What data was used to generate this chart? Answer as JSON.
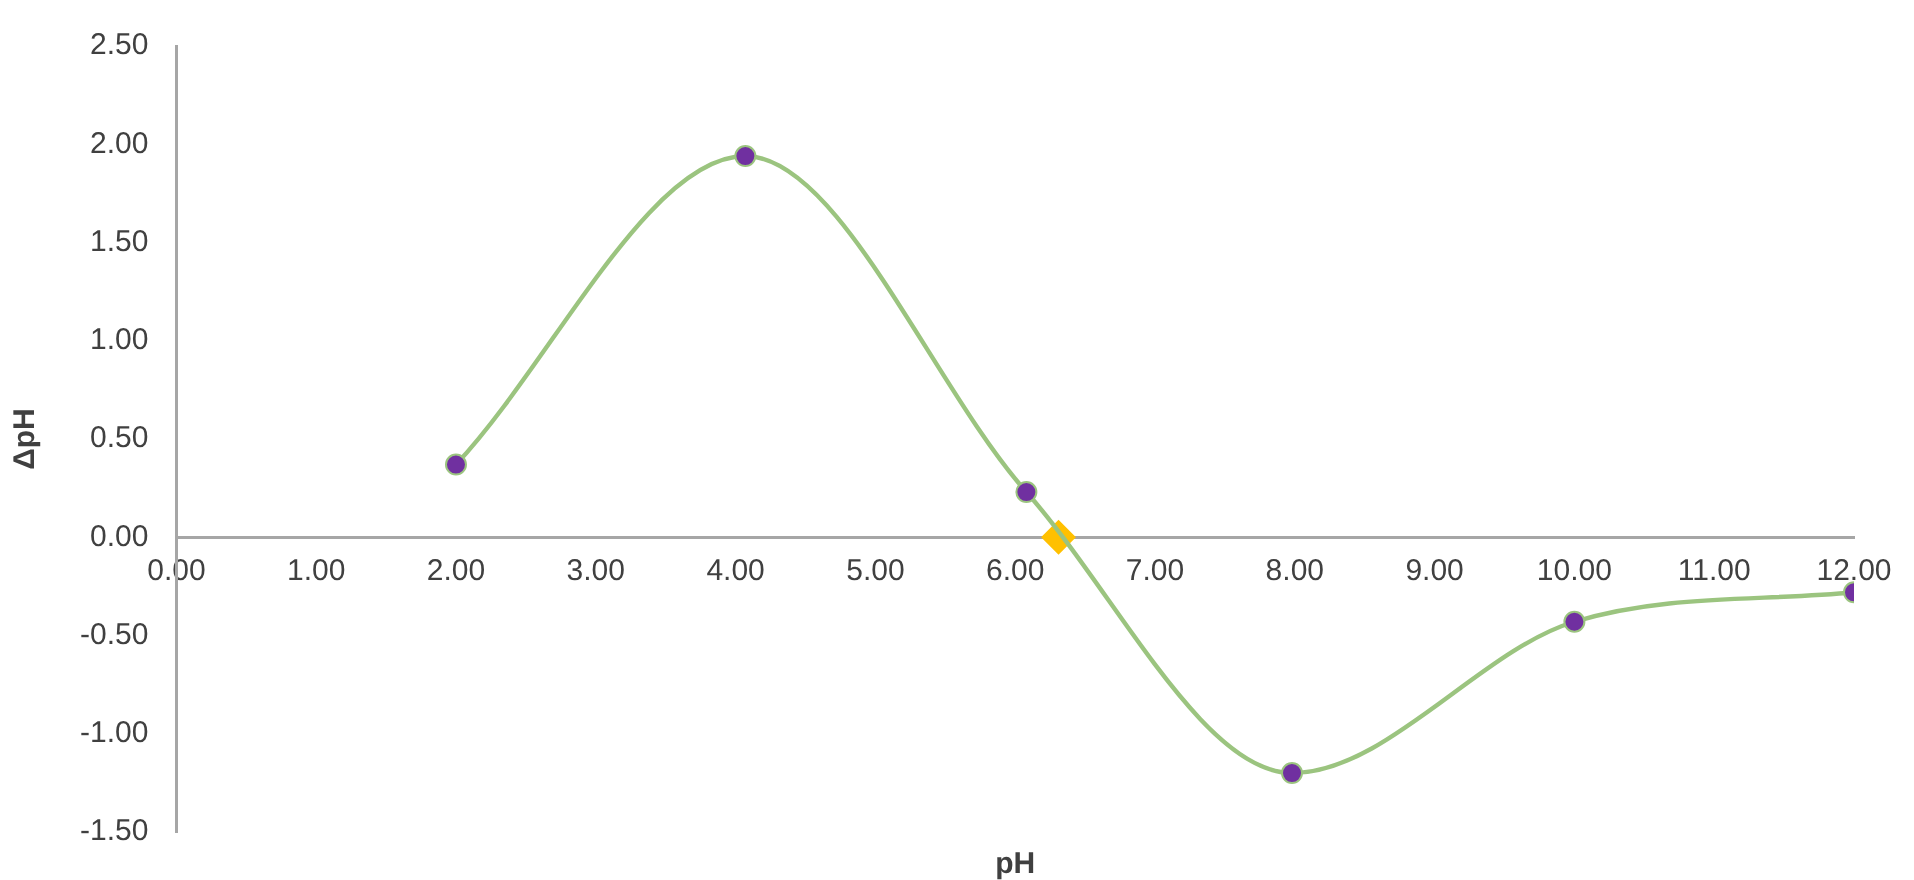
{
  "chart_data": {
    "type": "line",
    "xlabel": "pH",
    "ylabel": "ΔpH",
    "xlim": [
      0,
      12
    ],
    "ylim": [
      -1.5,
      2.5
    ],
    "xticks": [
      {
        "value": 0,
        "label": "0.00"
      },
      {
        "value": 1,
        "label": "1.00"
      },
      {
        "value": 2,
        "label": "2.00"
      },
      {
        "value": 3,
        "label": "3.00"
      },
      {
        "value": 4,
        "label": "4.00"
      },
      {
        "value": 5,
        "label": "5.00"
      },
      {
        "value": 6,
        "label": "6.00"
      },
      {
        "value": 7,
        "label": "7.00"
      },
      {
        "value": 8,
        "label": "8.00"
      },
      {
        "value": 9,
        "label": "9.00"
      },
      {
        "value": 10,
        "label": "10.00"
      },
      {
        "value": 11,
        "label": "11.00"
      },
      {
        "value": 12,
        "label": "12.00"
      }
    ],
    "yticks": [
      {
        "value": -1.5,
        "label": "-1.50"
      },
      {
        "value": -1,
        "label": "-1.00"
      },
      {
        "value": -0.5,
        "label": "-0.50"
      },
      {
        "value": 0,
        "label": "0.00"
      },
      {
        "value": 0.5,
        "label": "0.50"
      },
      {
        "value": 1,
        "label": "1.00"
      },
      {
        "value": 1.5,
        "label": "1.50"
      },
      {
        "value": 2,
        "label": "2.00"
      },
      {
        "value": 2.5,
        "label": "2.50"
      }
    ],
    "grid": false,
    "legend": false,
    "series": [
      {
        "color": "#9bc47f",
        "colors": [
          "#7030a0",
          "#7030a0",
          "#7030a0",
          "#7030a0",
          "#7030a0",
          "#7030a0"
        ],
        "marker": "circle",
        "x": [
          2.0,
          4.07,
          6.08,
          7.98,
          10.0,
          12.0
        ],
        "values": [
          0.37,
          1.94,
          0.23,
          -1.2,
          -0.43,
          -0.28
        ]
      },
      {
        "type": "scatter",
        "color": "#ffc000",
        "marker": "diamond",
        "x": [
          6.31
        ],
        "values": [
          0
        ]
      }
    ]
  }
}
